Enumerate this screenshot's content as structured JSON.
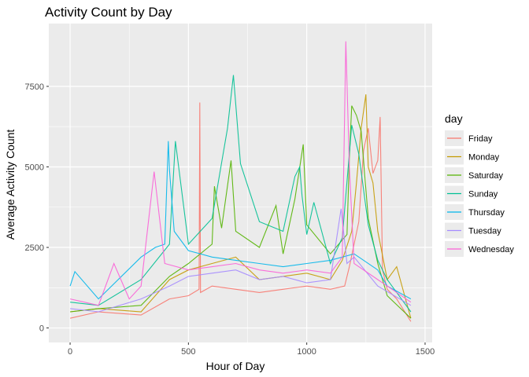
{
  "chart_data": {
    "type": "line",
    "title": "Activity Count by Day",
    "xlabel": "Hour of Day",
    "ylabel": "Average Activity Count",
    "xlim": [
      -90,
      1530
    ],
    "ylim": [
      -450,
      9450
    ],
    "x_ticks": [
      0,
      500,
      1000,
      1500
    ],
    "x_tick_labels": [
      "0",
      "500",
      "1000",
      "1500"
    ],
    "y_ticks": [
      0,
      2500,
      5000,
      7500
    ],
    "y_tick_labels": [
      "0",
      "2500",
      "5000",
      "7500"
    ],
    "grid": true,
    "legend": {
      "title": "day",
      "position": "right"
    },
    "colors": {
      "panel_background": "#ebebeb",
      "grid": "#ffffff",
      "Friday": "#f8766d",
      "Monday": "#c49a00",
      "Saturday": "#53b400",
      "Sunday": "#00c094",
      "Thursday": "#00b6eb",
      "Tuesday": "#a58aff",
      "Wednesday": "#fb61d7"
    },
    "series": [
      {
        "name": "Friday",
        "x": [
          0,
          120,
          300,
          420,
          500,
          545,
          548,
          551,
          600,
          700,
          800,
          900,
          1000,
          1100,
          1160,
          1180,
          1200,
          1220,
          1240,
          1260,
          1280,
          1300,
          1310,
          1320,
          1340,
          1380,
          1440
        ],
        "y": [
          300,
          500,
          400,
          900,
          1000,
          1200,
          7000,
          1100,
          1300,
          1200,
          1100,
          1200,
          1300,
          1200,
          1300,
          1900,
          2600,
          3300,
          5500,
          6200,
          4800,
          5200,
          6550,
          1800,
          1200,
          900,
          200
        ]
      },
      {
        "name": "Monday",
        "x": [
          0,
          120,
          300,
          420,
          500,
          600,
          700,
          800,
          900,
          1000,
          1100,
          1150,
          1190,
          1210,
          1230,
          1250,
          1260,
          1280,
          1300,
          1340,
          1380,
          1440
        ],
        "y": [
          500,
          600,
          500,
          1500,
          1800,
          2000,
          2200,
          1500,
          1600,
          1700,
          1500,
          2100,
          3000,
          4500,
          6200,
          7250,
          5000,
          4500,
          3000,
          1500,
          1900,
          300
        ]
      },
      {
        "name": "Saturday",
        "x": [
          0,
          120,
          300,
          420,
          500,
          600,
          610,
          640,
          680,
          700,
          800,
          870,
          900,
          950,
          985,
          1000,
          1100,
          1170,
          1180,
          1190,
          1210,
          1230,
          1260,
          1300,
          1340,
          1440
        ],
        "y": [
          500,
          600,
          700,
          1600,
          2000,
          2600,
          4400,
          3100,
          5200,
          3000,
          2500,
          3800,
          2300,
          4000,
          5700,
          3200,
          2300,
          2900,
          5300,
          6900,
          6600,
          6100,
          3400,
          2000,
          1000,
          300
        ]
      },
      {
        "name": "Sunday",
        "x": [
          0,
          120,
          300,
          420,
          445,
          500,
          600,
          665,
          690,
          720,
          800,
          900,
          950,
          970,
          980,
          1000,
          1030,
          1100,
          1150,
          1190,
          1220,
          1260,
          1300,
          1340,
          1440
        ],
        "y": [
          800,
          700,
          1500,
          2600,
          5800,
          2600,
          3400,
          6200,
          7850,
          5100,
          3300,
          3000,
          4700,
          5000,
          4100,
          2900,
          3900,
          2000,
          2800,
          6300,
          5400,
          3200,
          2100,
          1500,
          500
        ]
      },
      {
        "name": "Thursday",
        "x": [
          0,
          20,
          120,
          300,
          360,
          400,
          415,
          420,
          440,
          500,
          600,
          700,
          800,
          900,
          1000,
          1100,
          1200,
          1300,
          1340,
          1440
        ],
        "y": [
          1300,
          1750,
          900,
          2200,
          2500,
          2600,
          5800,
          4900,
          3000,
          2400,
          2200,
          2100,
          2000,
          1900,
          2000,
          2100,
          2300,
          1800,
          1300,
          900
        ]
      },
      {
        "name": "Tuesday",
        "x": [
          0,
          120,
          300,
          420,
          500,
          600,
          700,
          800,
          900,
          1000,
          1100,
          1145,
          1170,
          1200,
          1300,
          1440
        ],
        "y": [
          600,
          500,
          900,
          1300,
          1600,
          1700,
          1800,
          1500,
          1600,
          1400,
          1500,
          3700,
          2000,
          2200,
          1300,
          700
        ]
      },
      {
        "name": "Wednesday",
        "x": [
          0,
          120,
          185,
          250,
          300,
          355,
          400,
          500,
          600,
          700,
          800,
          900,
          1000,
          1100,
          1150,
          1165,
          1180,
          1200,
          1300,
          1440
        ],
        "y": [
          900,
          700,
          2000,
          900,
          1300,
          4850,
          2000,
          1800,
          1900,
          2000,
          1800,
          1700,
          1800,
          1700,
          2200,
          8900,
          5000,
          2000,
          1500,
          800
        ]
      }
    ]
  }
}
